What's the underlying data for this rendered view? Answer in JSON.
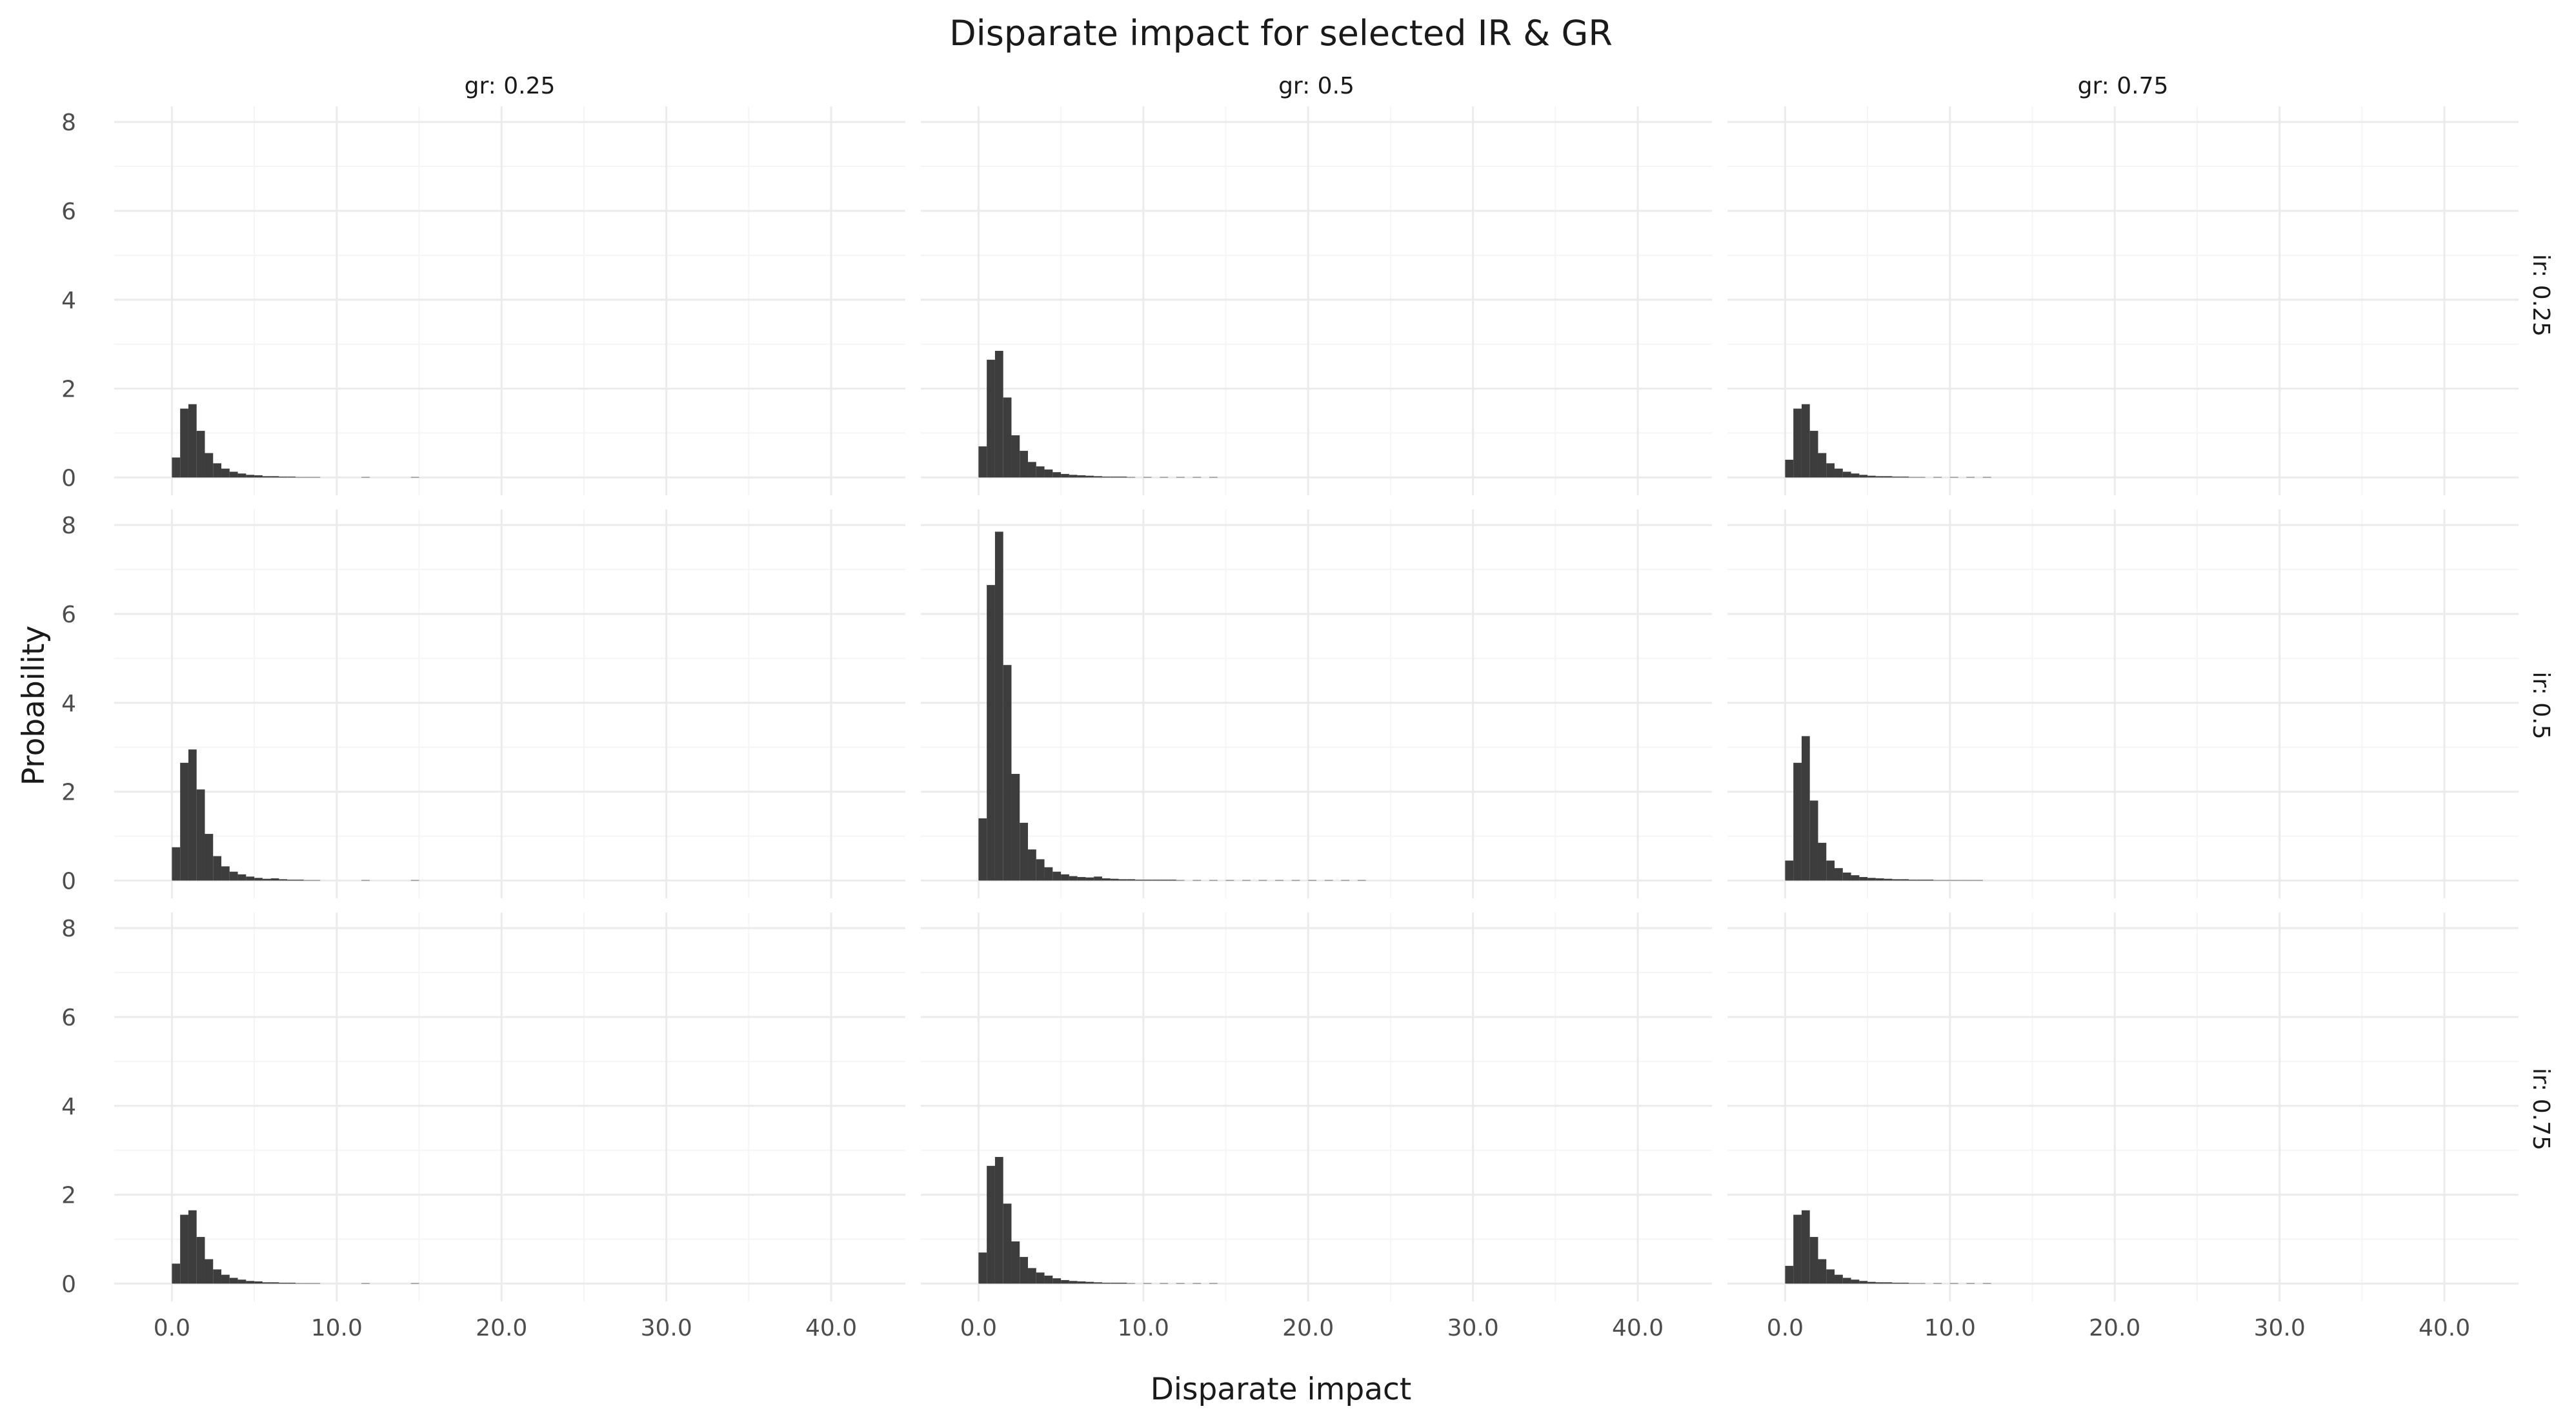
{
  "chart_data": {
    "type": "bar",
    "title": "Disparate impact for selected IR & GR",
    "xlabel": "Disparate impact",
    "ylabel": "Probability",
    "xlim": [
      -3.5,
      44.5
    ],
    "ylim": [
      -0.4,
      8.35
    ],
    "x_ticks": [
      0,
      10,
      20,
      30,
      40
    ],
    "x_tick_labels": [
      "0.0",
      "10.0",
      "20.0",
      "30.0",
      "40.0"
    ],
    "y_ticks": [
      0,
      2,
      4,
      6,
      8
    ],
    "y_tick_labels": [
      "0",
      "2",
      "4",
      "6",
      "8"
    ],
    "bin_width": 0.5,
    "columns": [
      {
        "name": "gr",
        "value": "0.25",
        "label": "gr: 0.25"
      },
      {
        "name": "gr",
        "value": "0.5",
        "label": "gr: 0.5"
      },
      {
        "name": "gr",
        "value": "0.75",
        "label": "gr: 0.75"
      }
    ],
    "rows": [
      {
        "name": "ir",
        "value": "0.25",
        "label": "ir: 0.25"
      },
      {
        "name": "ir",
        "value": "0.5",
        "label": "ir: 0.5"
      },
      {
        "name": "ir",
        "value": "0.75",
        "label": "ir: 0.75"
      }
    ],
    "panels": [
      {
        "row": 0,
        "col": 0,
        "bins": [
          {
            "x": 0,
            "y": 0.45
          },
          {
            "x": 0.5,
            "y": 1.55
          },
          {
            "x": 1,
            "y": 1.65
          },
          {
            "x": 1.5,
            "y": 1.05
          },
          {
            "x": 2,
            "y": 0.55
          },
          {
            "x": 2.5,
            "y": 0.32
          },
          {
            "x": 3,
            "y": 0.2
          },
          {
            "x": 3.5,
            "y": 0.13
          },
          {
            "x": 4,
            "y": 0.09
          },
          {
            "x": 4.5,
            "y": 0.06
          },
          {
            "x": 5,
            "y": 0.05
          },
          {
            "x": 5.5,
            "y": 0.03
          },
          {
            "x": 6,
            "y": 0.03
          },
          {
            "x": 6.5,
            "y": 0.02
          },
          {
            "x": 7,
            "y": 0.02
          },
          {
            "x": 7.5,
            "y": 0.01
          },
          {
            "x": 8,
            "y": 0.01
          },
          {
            "x": 8.5,
            "y": 0.01
          },
          {
            "x": 11.5,
            "y": 0.01
          },
          {
            "x": 14.5,
            "y": 0.01
          }
        ]
      },
      {
        "row": 0,
        "col": 1,
        "bins": [
          {
            "x": 0,
            "y": 0.7
          },
          {
            "x": 0.5,
            "y": 2.65
          },
          {
            "x": 1,
            "y": 2.85
          },
          {
            "x": 1.5,
            "y": 1.8
          },
          {
            "x": 2,
            "y": 0.95
          },
          {
            "x": 2.5,
            "y": 0.6
          },
          {
            "x": 3,
            "y": 0.35
          },
          {
            "x": 3.5,
            "y": 0.25
          },
          {
            "x": 4,
            "y": 0.18
          },
          {
            "x": 4.5,
            "y": 0.12
          },
          {
            "x": 5,
            "y": 0.08
          },
          {
            "x": 5.5,
            "y": 0.06
          },
          {
            "x": 6,
            "y": 0.05
          },
          {
            "x": 6.5,
            "y": 0.04
          },
          {
            "x": 7,
            "y": 0.03
          },
          {
            "x": 7.5,
            "y": 0.02
          },
          {
            "x": 8,
            "y": 0.02
          },
          {
            "x": 8.5,
            "y": 0.02
          },
          {
            "x": 9,
            "y": 0.01
          },
          {
            "x": 10,
            "y": 0.01
          },
          {
            "x": 11,
            "y": 0.01
          },
          {
            "x": 12,
            "y": 0.01
          },
          {
            "x": 13,
            "y": 0.01
          },
          {
            "x": 14,
            "y": 0.01
          }
        ]
      },
      {
        "row": 0,
        "col": 2,
        "bins": [
          {
            "x": 0,
            "y": 0.4
          },
          {
            "x": 0.5,
            "y": 1.55
          },
          {
            "x": 1,
            "y": 1.65
          },
          {
            "x": 1.5,
            "y": 1.05
          },
          {
            "x": 2,
            "y": 0.55
          },
          {
            "x": 2.5,
            "y": 0.32
          },
          {
            "x": 3,
            "y": 0.2
          },
          {
            "x": 3.5,
            "y": 0.13
          },
          {
            "x": 4,
            "y": 0.09
          },
          {
            "x": 4.5,
            "y": 0.06
          },
          {
            "x": 5,
            "y": 0.04
          },
          {
            "x": 5.5,
            "y": 0.03
          },
          {
            "x": 6,
            "y": 0.03
          },
          {
            "x": 6.5,
            "y": 0.02
          },
          {
            "x": 7,
            "y": 0.02
          },
          {
            "x": 7.5,
            "y": 0.01
          },
          {
            "x": 8,
            "y": 0.01
          },
          {
            "x": 9,
            "y": 0.01
          },
          {
            "x": 10,
            "y": 0.01
          },
          {
            "x": 11,
            "y": 0.01
          },
          {
            "x": 12,
            "y": 0.01
          }
        ]
      },
      {
        "row": 1,
        "col": 0,
        "bins": [
          {
            "x": 0,
            "y": 0.75
          },
          {
            "x": 0.5,
            "y": 2.65
          },
          {
            "x": 1,
            "y": 2.95
          },
          {
            "x": 1.5,
            "y": 2.05
          },
          {
            "x": 2,
            "y": 1.05
          },
          {
            "x": 2.5,
            "y": 0.55
          },
          {
            "x": 3,
            "y": 0.32
          },
          {
            "x": 3.5,
            "y": 0.2
          },
          {
            "x": 4,
            "y": 0.14
          },
          {
            "x": 4.5,
            "y": 0.09
          },
          {
            "x": 5,
            "y": 0.06
          },
          {
            "x": 5.5,
            "y": 0.04
          },
          {
            "x": 6,
            "y": 0.05
          },
          {
            "x": 6.5,
            "y": 0.03
          },
          {
            "x": 7,
            "y": 0.02
          },
          {
            "x": 7.5,
            "y": 0.02
          },
          {
            "x": 8,
            "y": 0.01
          },
          {
            "x": 8.5,
            "y": 0.01
          },
          {
            "x": 11.5,
            "y": 0.01
          },
          {
            "x": 14.5,
            "y": 0.01
          }
        ]
      },
      {
        "row": 1,
        "col": 1,
        "bins": [
          {
            "x": 0,
            "y": 1.4
          },
          {
            "x": 0.5,
            "y": 6.65
          },
          {
            "x": 1,
            "y": 7.85
          },
          {
            "x": 1.5,
            "y": 4.85
          },
          {
            "x": 2,
            "y": 2.4
          },
          {
            "x": 2.5,
            "y": 1.3
          },
          {
            "x": 3,
            "y": 0.7
          },
          {
            "x": 3.5,
            "y": 0.48
          },
          {
            "x": 4,
            "y": 0.3
          },
          {
            "x": 4.5,
            "y": 0.2
          },
          {
            "x": 5,
            "y": 0.14
          },
          {
            "x": 5.5,
            "y": 0.1
          },
          {
            "x": 6,
            "y": 0.08
          },
          {
            "x": 6.5,
            "y": 0.07
          },
          {
            "x": 7,
            "y": 0.09
          },
          {
            "x": 7.5,
            "y": 0.05
          },
          {
            "x": 8,
            "y": 0.04
          },
          {
            "x": 8.5,
            "y": 0.03
          },
          {
            "x": 9,
            "y": 0.03
          },
          {
            "x": 9.5,
            "y": 0.02
          },
          {
            "x": 10,
            "y": 0.02
          },
          {
            "x": 10.5,
            "y": 0.02
          },
          {
            "x": 11,
            "y": 0.02
          },
          {
            "x": 11.5,
            "y": 0.02
          },
          {
            "x": 12,
            "y": 0.01
          },
          {
            "x": 13,
            "y": 0.01
          },
          {
            "x": 14,
            "y": 0.01
          },
          {
            "x": 15,
            "y": 0.01
          },
          {
            "x": 16,
            "y": 0.01
          },
          {
            "x": 17,
            "y": 0.01
          },
          {
            "x": 18,
            "y": 0.01
          },
          {
            "x": 19,
            "y": 0.01
          },
          {
            "x": 20,
            "y": 0.01
          },
          {
            "x": 21,
            "y": 0.01
          },
          {
            "x": 22,
            "y": 0.01
          },
          {
            "x": 23,
            "y": 0.01
          }
        ]
      },
      {
        "row": 1,
        "col": 2,
        "bins": [
          {
            "x": 0,
            "y": 0.45
          },
          {
            "x": 0.5,
            "y": 2.65
          },
          {
            "x": 1,
            "y": 3.25
          },
          {
            "x": 1.5,
            "y": 1.8
          },
          {
            "x": 2,
            "y": 0.85
          },
          {
            "x": 2.5,
            "y": 0.45
          },
          {
            "x": 3,
            "y": 0.28
          },
          {
            "x": 3.5,
            "y": 0.18
          },
          {
            "x": 4,
            "y": 0.12
          },
          {
            "x": 4.5,
            "y": 0.08
          },
          {
            "x": 5,
            "y": 0.06
          },
          {
            "x": 5.5,
            "y": 0.05
          },
          {
            "x": 6,
            "y": 0.04
          },
          {
            "x": 6.5,
            "y": 0.03
          },
          {
            "x": 7,
            "y": 0.03
          },
          {
            "x": 7.5,
            "y": 0.02
          },
          {
            "x": 8,
            "y": 0.02
          },
          {
            "x": 8.5,
            "y": 0.02
          },
          {
            "x": 9,
            "y": 0.01
          },
          {
            "x": 9.5,
            "y": 0.01
          },
          {
            "x": 10,
            "y": 0.01
          },
          {
            "x": 10.5,
            "y": 0.01
          },
          {
            "x": 11,
            "y": 0.01
          },
          {
            "x": 11.5,
            "y": 0.01
          }
        ]
      },
      {
        "row": 2,
        "col": 0,
        "bins": [
          {
            "x": 0,
            "y": 0.45
          },
          {
            "x": 0.5,
            "y": 1.55
          },
          {
            "x": 1,
            "y": 1.65
          },
          {
            "x": 1.5,
            "y": 1.05
          },
          {
            "x": 2,
            "y": 0.55
          },
          {
            "x": 2.5,
            "y": 0.32
          },
          {
            "x": 3,
            "y": 0.2
          },
          {
            "x": 3.5,
            "y": 0.13
          },
          {
            "x": 4,
            "y": 0.09
          },
          {
            "x": 4.5,
            "y": 0.06
          },
          {
            "x": 5,
            "y": 0.05
          },
          {
            "x": 5.5,
            "y": 0.03
          },
          {
            "x": 6,
            "y": 0.03
          },
          {
            "x": 6.5,
            "y": 0.02
          },
          {
            "x": 7,
            "y": 0.02
          },
          {
            "x": 7.5,
            "y": 0.01
          },
          {
            "x": 8,
            "y": 0.01
          },
          {
            "x": 8.5,
            "y": 0.01
          },
          {
            "x": 11.5,
            "y": 0.01
          },
          {
            "x": 14.5,
            "y": 0.01
          }
        ]
      },
      {
        "row": 2,
        "col": 1,
        "bins": [
          {
            "x": 0,
            "y": 0.7
          },
          {
            "x": 0.5,
            "y": 2.65
          },
          {
            "x": 1,
            "y": 2.85
          },
          {
            "x": 1.5,
            "y": 1.8
          },
          {
            "x": 2,
            "y": 0.95
          },
          {
            "x": 2.5,
            "y": 0.6
          },
          {
            "x": 3,
            "y": 0.35
          },
          {
            "x": 3.5,
            "y": 0.25
          },
          {
            "x": 4,
            "y": 0.18
          },
          {
            "x": 4.5,
            "y": 0.12
          },
          {
            "x": 5,
            "y": 0.08
          },
          {
            "x": 5.5,
            "y": 0.06
          },
          {
            "x": 6,
            "y": 0.05
          },
          {
            "x": 6.5,
            "y": 0.04
          },
          {
            "x": 7,
            "y": 0.03
          },
          {
            "x": 7.5,
            "y": 0.02
          },
          {
            "x": 8,
            "y": 0.02
          },
          {
            "x": 8.5,
            "y": 0.02
          },
          {
            "x": 9,
            "y": 0.01
          },
          {
            "x": 10,
            "y": 0.01
          },
          {
            "x": 11,
            "y": 0.01
          },
          {
            "x": 12,
            "y": 0.01
          },
          {
            "x": 13,
            "y": 0.01
          },
          {
            "x": 14,
            "y": 0.01
          }
        ]
      },
      {
        "row": 2,
        "col": 2,
        "bins": [
          {
            "x": 0,
            "y": 0.4
          },
          {
            "x": 0.5,
            "y": 1.55
          },
          {
            "x": 1,
            "y": 1.65
          },
          {
            "x": 1.5,
            "y": 1.05
          },
          {
            "x": 2,
            "y": 0.55
          },
          {
            "x": 2.5,
            "y": 0.32
          },
          {
            "x": 3,
            "y": 0.2
          },
          {
            "x": 3.5,
            "y": 0.13
          },
          {
            "x": 4,
            "y": 0.09
          },
          {
            "x": 4.5,
            "y": 0.06
          },
          {
            "x": 5,
            "y": 0.04
          },
          {
            "x": 5.5,
            "y": 0.03
          },
          {
            "x": 6,
            "y": 0.03
          },
          {
            "x": 6.5,
            "y": 0.02
          },
          {
            "x": 7,
            "y": 0.02
          },
          {
            "x": 7.5,
            "y": 0.01
          },
          {
            "x": 8,
            "y": 0.01
          },
          {
            "x": 9,
            "y": 0.01
          },
          {
            "x": 10,
            "y": 0.01
          },
          {
            "x": 11,
            "y": 0.01
          },
          {
            "x": 12,
            "y": 0.01
          }
        ]
      }
    ],
    "colors": {
      "bar": "#3d3d3d",
      "grid_major": "#ebebeb",
      "grid_minor": "#f5f5f5",
      "background": "#ffffff"
    },
    "grid": true,
    "legend": "none"
  }
}
